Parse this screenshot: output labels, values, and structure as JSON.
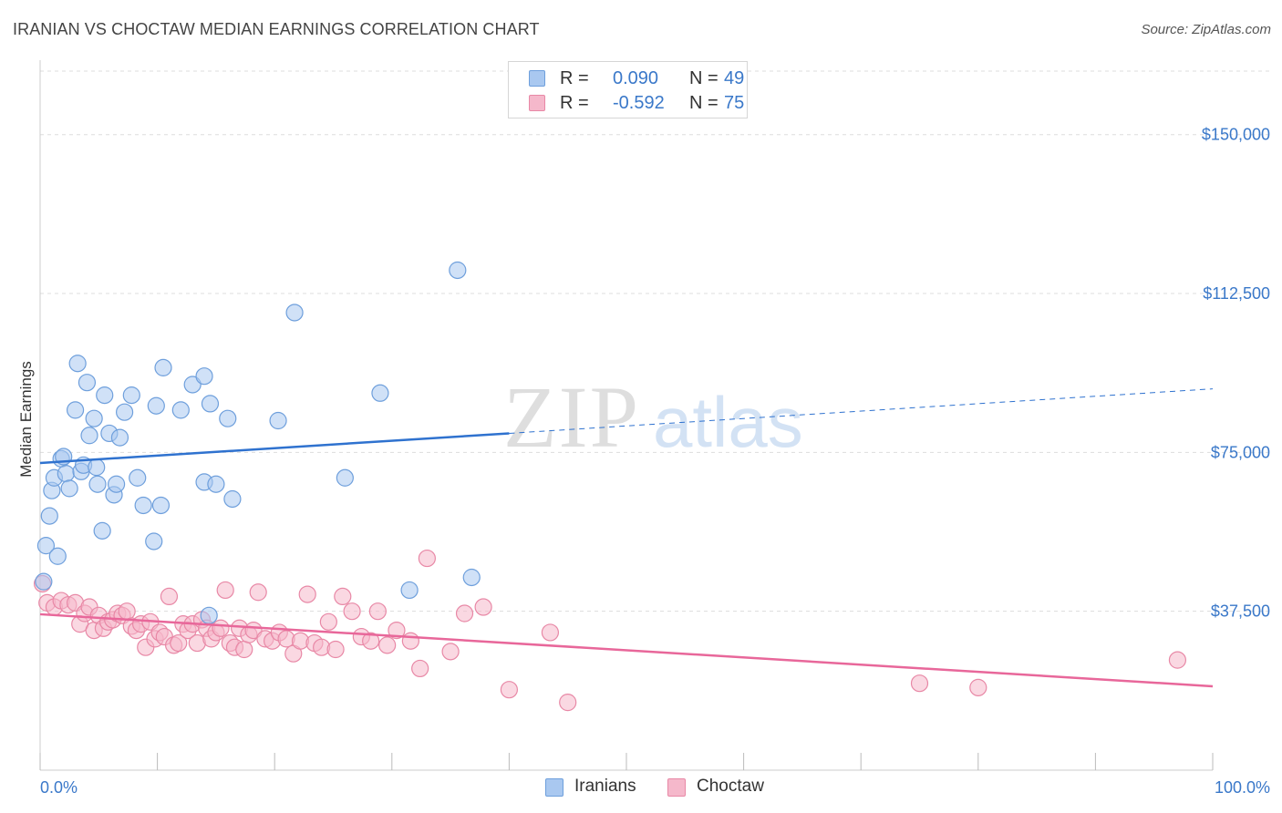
{
  "title": "IRANIAN VS CHOCTAW MEDIAN EARNINGS CORRELATION CHART",
  "source": "Source: ZipAtlas.com",
  "watermark": {
    "zip": "ZIP",
    "atlas": "atlas"
  },
  "colors": {
    "iranians_fill": "#a9c8f0",
    "iranians_stroke": "#6e9fdc",
    "iranians_line": "#2f72cf",
    "choctaw_fill": "#f5b8cb",
    "choctaw_stroke": "#e888a6",
    "choctaw_line": "#e8679a",
    "tick_label": "#3a78c9",
    "grid": "#dddddd"
  },
  "legend": {
    "rows": [
      {
        "r_label": "R =",
        "r_value": "0.090",
        "n_label": "N =",
        "n_value": "49"
      },
      {
        "r_label": "R =",
        "r_value": "-0.592",
        "n_label": "N =",
        "n_value": "75"
      }
    ]
  },
  "bottom_legend": {
    "iranians": "Iranians",
    "choctaw": "Choctaw"
  },
  "chart_data": {
    "type": "scatter",
    "xlabel": "",
    "ylabel": "Median Earnings",
    "xlim": [
      0,
      100
    ],
    "ylim": [
      0,
      165000
    ],
    "x_tick_labels": [
      "0.0%",
      "100.0%"
    ],
    "y_ticks": [
      37500,
      75000,
      112500,
      150000
    ],
    "y_tick_labels": [
      "$37,500",
      "$75,000",
      "$112,500",
      "$150,000"
    ],
    "grid": true,
    "legend_position": "top-center",
    "series": [
      {
        "name": "Iranians",
        "r": 0.09,
        "n": 49,
        "trend": {
          "x0": 0,
          "y0": 72500,
          "x1": 40,
          "y1": 79500,
          "dashed_to": 100,
          "dashed_y": 90000
        },
        "points": [
          [
            0.5,
            53000
          ],
          [
            0.8,
            60000
          ],
          [
            1.0,
            66000
          ],
          [
            1.2,
            69000
          ],
          [
            1.5,
            50500
          ],
          [
            1.8,
            73500
          ],
          [
            2.0,
            74000
          ],
          [
            2.2,
            70000
          ],
          [
            2.5,
            66500
          ],
          [
            3.0,
            85000
          ],
          [
            3.2,
            96000
          ],
          [
            3.5,
            70500
          ],
          [
            3.7,
            72000
          ],
          [
            4.0,
            91500
          ],
          [
            4.2,
            79000
          ],
          [
            4.6,
            83000
          ],
          [
            4.8,
            71500
          ],
          [
            4.9,
            67500
          ],
          [
            5.3,
            56500
          ],
          [
            5.5,
            88500
          ],
          [
            5.9,
            79500
          ],
          [
            6.3,
            65000
          ],
          [
            6.5,
            67500
          ],
          [
            6.8,
            78500
          ],
          [
            7.2,
            84500
          ],
          [
            7.8,
            88500
          ],
          [
            8.3,
            69000
          ],
          [
            8.8,
            62500
          ],
          [
            9.7,
            54000
          ],
          [
            9.9,
            86000
          ],
          [
            10.3,
            62500
          ],
          [
            10.5,
            95000
          ],
          [
            12.0,
            85000
          ],
          [
            13.0,
            91000
          ],
          [
            14.0,
            68000
          ],
          [
            14.0,
            93000
          ],
          [
            14.5,
            86500
          ],
          [
            15.0,
            67500
          ],
          [
            16.0,
            83000
          ],
          [
            16.4,
            64000
          ],
          [
            20.3,
            82500
          ],
          [
            21.7,
            108000
          ],
          [
            14.4,
            36500
          ],
          [
            26.0,
            69000
          ],
          [
            29.0,
            89000
          ],
          [
            31.5,
            42500
          ],
          [
            35.6,
            118000
          ],
          [
            36.8,
            45500
          ],
          [
            0.3,
            44500
          ]
        ]
      },
      {
        "name": "Choctaw",
        "r": -0.592,
        "n": 75,
        "trend": {
          "x0": 0,
          "y0": 36800,
          "x1": 100,
          "y1": 19800
        },
        "points": [
          [
            0.2,
            44000
          ],
          [
            0.6,
            39500
          ],
          [
            1.2,
            38500
          ],
          [
            1.8,
            40000
          ],
          [
            2.4,
            39000
          ],
          [
            3.0,
            39500
          ],
          [
            3.4,
            34500
          ],
          [
            3.8,
            37000
          ],
          [
            4.2,
            38500
          ],
          [
            4.6,
            33000
          ],
          [
            5.0,
            36500
          ],
          [
            5.4,
            33500
          ],
          [
            5.8,
            35000
          ],
          [
            6.2,
            35500
          ],
          [
            6.6,
            37000
          ],
          [
            7.0,
            36500
          ],
          [
            7.4,
            37500
          ],
          [
            7.8,
            34000
          ],
          [
            8.2,
            33000
          ],
          [
            8.6,
            34500
          ],
          [
            9.0,
            29000
          ],
          [
            9.4,
            35000
          ],
          [
            9.8,
            31000
          ],
          [
            10.2,
            32500
          ],
          [
            10.6,
            31500
          ],
          [
            11.0,
            41000
          ],
          [
            11.4,
            29500
          ],
          [
            11.8,
            30000
          ],
          [
            12.2,
            34500
          ],
          [
            12.6,
            33000
          ],
          [
            13.0,
            34500
          ],
          [
            13.4,
            30000
          ],
          [
            13.8,
            35500
          ],
          [
            14.2,
            33500
          ],
          [
            14.6,
            31000
          ],
          [
            15.0,
            32500
          ],
          [
            15.4,
            33500
          ],
          [
            15.8,
            42500
          ],
          [
            16.2,
            30000
          ],
          [
            16.6,
            29000
          ],
          [
            17.0,
            33500
          ],
          [
            17.4,
            28500
          ],
          [
            17.8,
            32000
          ],
          [
            18.2,
            33000
          ],
          [
            18.6,
            42000
          ],
          [
            19.2,
            31000
          ],
          [
            19.8,
            30500
          ],
          [
            20.4,
            32500
          ],
          [
            21.0,
            31000
          ],
          [
            21.6,
            27500
          ],
          [
            22.2,
            30500
          ],
          [
            22.8,
            41500
          ],
          [
            23.4,
            30000
          ],
          [
            24.0,
            29000
          ],
          [
            24.6,
            35000
          ],
          [
            25.2,
            28500
          ],
          [
            25.8,
            41000
          ],
          [
            26.6,
            37500
          ],
          [
            27.4,
            31500
          ],
          [
            28.2,
            30500
          ],
          [
            28.8,
            37500
          ],
          [
            29.6,
            29500
          ],
          [
            30.4,
            33000
          ],
          [
            31.6,
            30500
          ],
          [
            32.4,
            24000
          ],
          [
            33.0,
            50000
          ],
          [
            35.0,
            28000
          ],
          [
            36.2,
            37000
          ],
          [
            37.8,
            38500
          ],
          [
            40.0,
            19000
          ],
          [
            43.5,
            32500
          ],
          [
            45.0,
            16000
          ],
          [
            75.0,
            20500
          ],
          [
            80.0,
            19500
          ],
          [
            97.0,
            26000
          ]
        ]
      }
    ]
  }
}
